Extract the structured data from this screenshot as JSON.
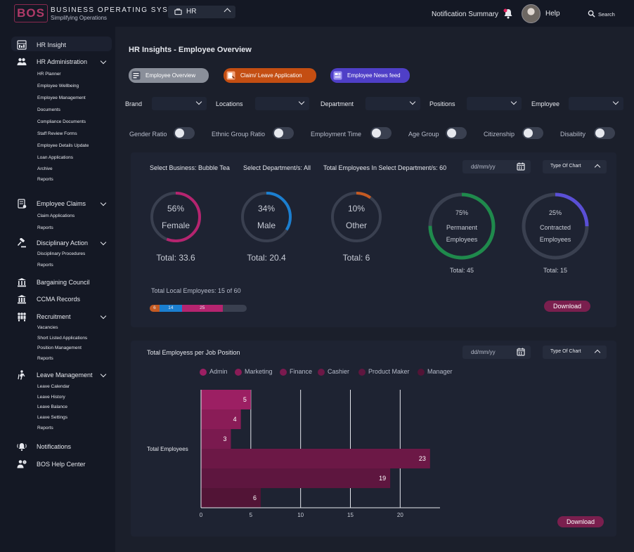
{
  "header": {
    "logo_text": "BOS",
    "brand_name": "BUSINESS OPERATING SYSTEM",
    "brand_tagline": "Simplifying Operations",
    "module": "HR",
    "notification_summary": "Notification Summary",
    "help": "Help",
    "search": "Search",
    "bell_badge_color": "#e0245e"
  },
  "sidebar": {
    "items": [
      {
        "label": "HR Insight",
        "icon": "hr-insight-icon",
        "active": true
      },
      {
        "label": "HR Administration",
        "icon": "hr-admin-icon",
        "expanded": true,
        "sub": [
          "HR Planner",
          "Employee Wellbeing",
          "Employee Management",
          "Documents",
          "Compliance Documents",
          "Staff Review Forms",
          "Employee Details Update",
          "Loan Applications",
          "Archive",
          "Reports"
        ]
      },
      {
        "label": "Employee Claims",
        "icon": "claims-icon",
        "expanded": true,
        "sub": [
          "Claim Applications",
          "Reports"
        ]
      },
      {
        "label": "Disciplinary Action",
        "icon": "gavel-icon",
        "expanded": true,
        "sub": [
          "Disciplinary Procedures",
          "Reports"
        ]
      },
      {
        "label": "Bargaining Council",
        "icon": "council-icon"
      },
      {
        "label": "CCMA Records",
        "icon": "ccma-icon"
      },
      {
        "label": "Recruitment",
        "icon": "recruitment-icon",
        "expanded": true,
        "sub": [
          "Vacancies",
          "Short Listed Applications",
          "Position Management",
          "Reports"
        ]
      },
      {
        "label": "Leave Management",
        "icon": "leave-icon",
        "expanded": true,
        "sub": [
          "Leave Calendar",
          "Leave History",
          "Leave Balance",
          "Leave Settings",
          "Reports"
        ]
      },
      {
        "label": "Notifications",
        "icon": "notifications-icon"
      },
      {
        "label": "BOS Help Center",
        "icon": "help-center-icon"
      }
    ]
  },
  "main": {
    "title": "HR Insights - Employee Overview",
    "tabs": [
      {
        "label": "Employee Overview",
        "color": "#8a8f9a"
      },
      {
        "label": "Claim/ Leave Application",
        "color": "#c44e12"
      },
      {
        "label": "Employee News feed",
        "color": "#4f3fc7"
      }
    ],
    "filters": [
      "Brand",
      "Locations",
      "Department",
      "Positions",
      "Employee"
    ],
    "toggles": [
      "Gender Ratio",
      "Ethnic Group Ratio",
      "Employment Time",
      "Age Group",
      "Citizenship",
      "Disability"
    ],
    "overview": {
      "select_business": "Select Business: Bubble Tea",
      "select_department": "Select Department/s: All",
      "total_employees": "Total Employees In Select Department/s: 60",
      "date_placeholder": "dd/mm/yy",
      "chart_type": "Type Of Chart",
      "donuts": [
        {
          "percent": 56,
          "pct_label": "56%",
          "name": "Female",
          "total": "Total: 33.6",
          "color": "#b5246f"
        },
        {
          "percent": 34,
          "pct_label": "34%",
          "name": "Male",
          "total": "Total: 20.4",
          "color": "#1b7fd0"
        },
        {
          "percent": 10,
          "pct_label": "10%",
          "name": "Other",
          "total": "Total: 6",
          "color": "#c45a22"
        },
        {
          "percent": 75,
          "pct_label": "75%",
          "name": "Permanent Employees",
          "total": "Total: 45",
          "color": "#1f8a4c"
        },
        {
          "percent": 25,
          "pct_label": "25%",
          "name": "Contracted Employees",
          "total": "Total: 15",
          "color": "#5a4fd6"
        }
      ],
      "local_text": "Total Local Employees: 15 of 60",
      "local_bar": [
        {
          "label": "6",
          "value": 6,
          "color": "#c45a22"
        },
        {
          "label": "14",
          "value": 14,
          "color": "#1b7fd0"
        },
        {
          "label": "25",
          "value": 25,
          "color": "#b5246f"
        }
      ],
      "local_bar_max": 60,
      "download": "Download"
    },
    "positions": {
      "title": "Total Employess per Job Position",
      "date_placeholder": "dd/mm/yy",
      "chart_type": "Type Of Chart",
      "download": "Download"
    }
  },
  "chart_data": {
    "type": "bar",
    "orientation": "horizontal",
    "title": "Total Employess per Job Position",
    "categories": [
      "Total Employees"
    ],
    "series": [
      {
        "name": "Admin",
        "values": [
          5
        ],
        "color": "#9c1f63"
      },
      {
        "name": "Marketing",
        "values": [
          4
        ],
        "color": "#8a1c57"
      },
      {
        "name": "Finance",
        "values": [
          3
        ],
        "color": "#7a1a4f"
      },
      {
        "name": "Cashier",
        "values": [
          23
        ],
        "color": "#6c1846"
      },
      {
        "name": "Product Maker",
        "values": [
          19
        ],
        "color": "#5e163f"
      },
      {
        "name": "Manager",
        "values": [
          6
        ],
        "color": "#521436"
      }
    ],
    "xticks": [
      "0",
      "5",
      "10",
      "15",
      "20"
    ],
    "xlim": [
      0,
      24
    ],
    "grid": true,
    "legend": "top"
  }
}
